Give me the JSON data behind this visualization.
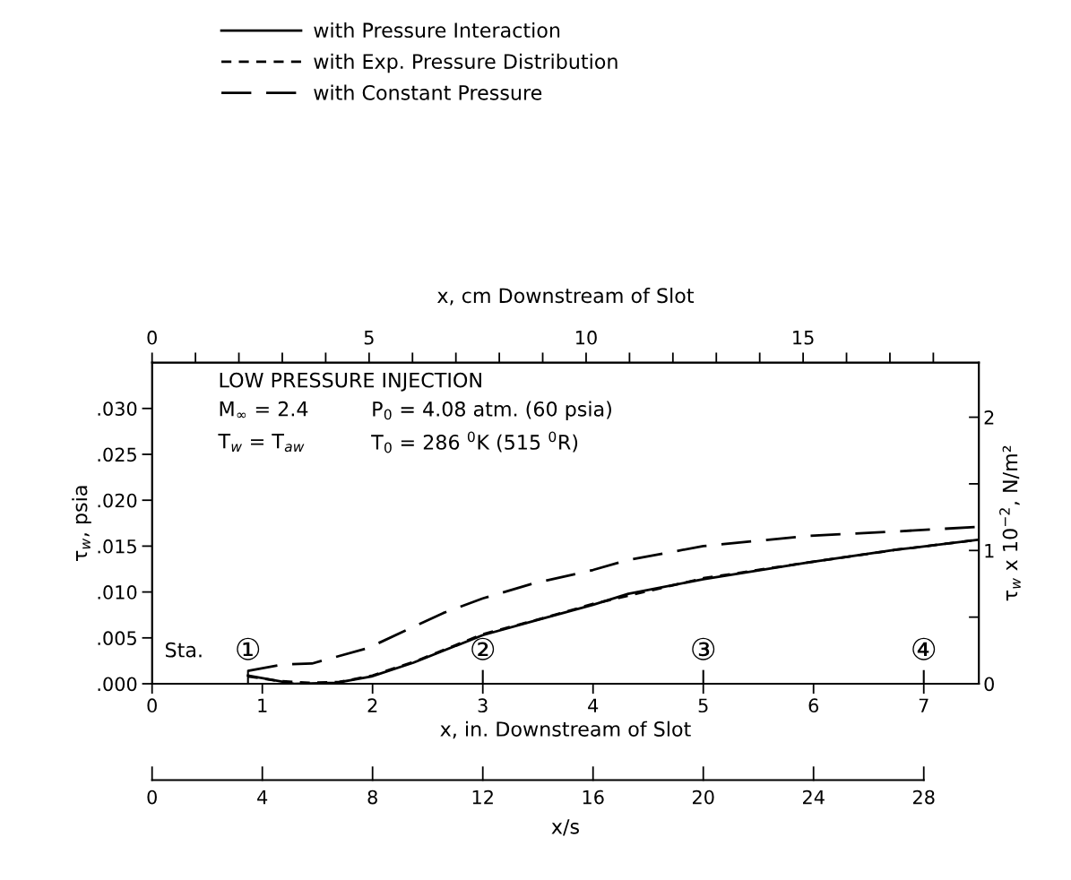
{
  "chart_data": [
    {
      "type": "line",
      "xlabel": "x, in. Downstream of Slot",
      "ylabel": "τ$_{w}$, psia",
      "y2label": "τ$_{w}$ x 10$^{−2}$, N/m²",
      "x2label": "x, cm Downstream of Slot",
      "xlim": [
        0,
        7.5
      ],
      "xticks": [
        0,
        1,
        2,
        3,
        4,
        5,
        6,
        7
      ],
      "ylim": [
        0,
        0.035
      ],
      "yticks": [
        {
          "value": 0,
          "label": ".000"
        },
        {
          "value": 0.005,
          "label": ".005"
        },
        {
          "value": 0.01,
          "label": ".010"
        },
        {
          "value": 0.015,
          "label": ".015"
        },
        {
          "value": 0.02,
          "label": ".020"
        },
        {
          "value": 0.025,
          "label": ".025"
        },
        {
          "value": 0.03,
          "label": ".030"
        }
      ],
      "y2lim": [
        0,
        2.41
      ],
      "y2ticks": [
        0,
        {
          "value": 0.5,
          "label": null
        },
        1,
        {
          "value": 1.5,
          "label": null
        },
        2
      ],
      "x2lim": [
        0,
        19.05
      ],
      "x2ticks": [
        0,
        {
          "value": 1,
          "label": null
        },
        {
          "value": 2,
          "label": null
        },
        {
          "value": 3,
          "label": null
        },
        {
          "value": 4,
          "label": null
        },
        5,
        {
          "value": 6,
          "label": null
        },
        {
          "value": 7,
          "label": null
        },
        {
          "value": 8,
          "label": null
        },
        {
          "value": 9,
          "label": null
        },
        10,
        {
          "value": 11,
          "label": null
        },
        {
          "value": 12,
          "label": null
        },
        {
          "value": 13,
          "label": null
        },
        {
          "value": 14,
          "label": null
        },
        15,
        {
          "value": 16,
          "label": null
        },
        {
          "value": 17,
          "label": null
        },
        {
          "value": 18,
          "label": null
        }
      ],
      "legend": "top",
      "marker": "none",
      "series": [
        {
          "name": "with Pressure Interaction",
          "color": "#000000",
          "line_style": "solid",
          "x": [
            0.87,
            1.29,
            1.67,
            1.99,
            2.37,
            3.0,
            3.45,
            4.0,
            4.32,
            5.0,
            5.94,
            6.75,
            7.5
          ],
          "values": [
            0.0009,
            0.0,
            0.0001,
            0.0008,
            0.0023,
            0.0053,
            0.0068,
            0.0086,
            0.0098,
            0.0114,
            0.0132,
            0.0146,
            0.0157
          ]
        },
        {
          "name": "with Exp. Pressure Distribution",
          "color": "#000000",
          "line_style": "dotted",
          "x": [
            0.87,
            1.15,
            1.42,
            1.7,
            2.0,
            2.4,
            3.0,
            3.5,
            4.0,
            5.0,
            5.94,
            6.75,
            7.5
          ],
          "values": [
            0.0008,
            0.0003,
            0.0001,
            0.0002,
            0.0009,
            0.0025,
            0.0054,
            0.007,
            0.0087,
            0.0115,
            0.0132,
            0.0146,
            0.0157
          ]
        },
        {
          "name": "with Constant Pressure",
          "color": "#000000",
          "line_style": "dashed",
          "x": [
            0.87,
            1.18,
            1.45,
            1.96,
            2.37,
            2.64,
            3.0,
            3.45,
            4.0,
            4.32,
            5.0,
            5.94,
            6.75,
            7.5
          ],
          "values": [
            0.0014,
            0.0021,
            0.0022,
            0.0039,
            0.0062,
            0.0077,
            0.0093,
            0.0109,
            0.0124,
            0.0135,
            0.015,
            0.0161,
            0.0166,
            0.0171
          ]
        }
      ],
      "annotations": [
        "LOW PRESSURE INJECTION",
        "M$_{∞}$ = 2.4",
        "P$_{0}$ = 4.08 atm. (60 psia)",
        "T$_{w}$ = T$_{aw}$",
        "T$_{0}$ = 286 $^{0}$K (515 $^{0}$R)",
        "Sta.",
        "①",
        "②",
        "③",
        "④",
        "0",
        "4",
        "8",
        "12",
        "16",
        "20",
        "24",
        "28",
        "x/s"
      ]
    }
  ]
}
